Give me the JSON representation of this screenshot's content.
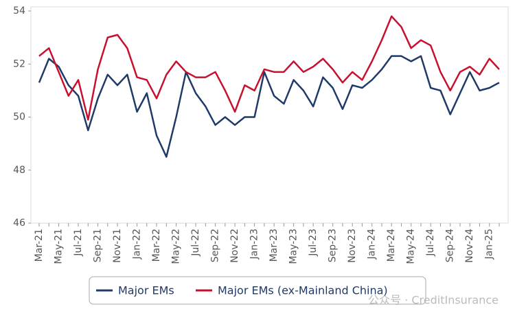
{
  "chart_data": {
    "type": "line",
    "categories": [
      "Mar-21",
      null,
      "May-21",
      null,
      "Jul-21",
      null,
      "Sep-21",
      null,
      "Nov-21",
      null,
      "Jan-22",
      null,
      "Mar-22",
      null,
      "May-22",
      null,
      "Jul-22",
      null,
      "Sep-22",
      null,
      "Nov-22",
      null,
      "Jan-23",
      null,
      "Mar-23",
      null,
      "May-23",
      null,
      "Jul-23",
      null,
      "Sep-23",
      null,
      "Nov-23",
      null,
      "Jan-24",
      null,
      "Mar-24",
      null,
      "May-24",
      null,
      "Jul-24",
      null,
      "Sep-24",
      null,
      "Nov-24",
      null,
      "Jan-25",
      null
    ],
    "series": [
      {
        "name": "Major EMs",
        "color": "#1f3a68",
        "values": [
          51.3,
          52.2,
          51.9,
          51.2,
          50.8,
          49.5,
          50.7,
          51.6,
          51.2,
          51.6,
          50.2,
          50.9,
          49.3,
          48.5,
          50.0,
          51.7,
          50.9,
          50.4,
          49.7,
          50.0,
          49.7,
          50.0,
          50.0,
          51.7,
          50.8,
          50.5,
          51.4,
          51.0,
          50.4,
          51.5,
          51.1,
          50.3,
          51.2,
          51.1,
          51.4,
          51.8,
          52.3,
          52.3,
          52.1,
          52.3,
          51.1,
          51.0,
          50.1,
          50.9,
          51.7,
          51.0,
          51.1,
          51.3
        ]
      },
      {
        "name": "Major EMs (ex-Mainland China)",
        "color": "#c8102e",
        "values": [
          52.3,
          52.6,
          51.7,
          50.8,
          51.4,
          49.9,
          51.8,
          53.0,
          53.1,
          52.6,
          51.5,
          51.4,
          50.7,
          51.6,
          52.1,
          51.7,
          51.5,
          51.5,
          51.7,
          51.0,
          50.2,
          51.2,
          51.0,
          51.8,
          51.7,
          51.7,
          52.1,
          51.7,
          51.9,
          52.2,
          51.8,
          51.3,
          51.7,
          51.4,
          52.1,
          52.9,
          53.8,
          53.4,
          52.6,
          52.9,
          52.7,
          51.7,
          51.0,
          51.7,
          51.9,
          51.6,
          52.2,
          51.8
        ]
      }
    ],
    "ylim": [
      46,
      54
    ],
    "yticks": [
      46,
      48,
      50,
      52,
      54
    ],
    "grid": false,
    "legend": "bottom",
    "watermark": "公众号 · CreditInsurance"
  }
}
